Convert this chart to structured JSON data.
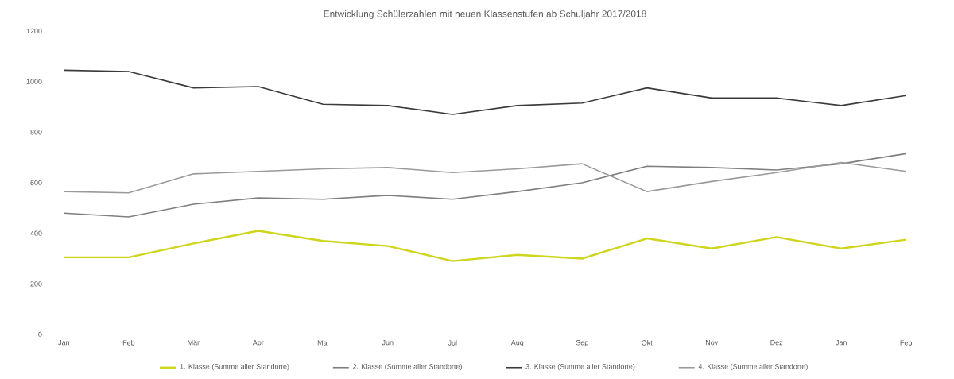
{
  "chart_data": {
    "type": "line",
    "title": "Entwicklung Schülerzahlen mit neuen Klassenstufen ab Schuljahr 2017/2018",
    "categories": [
      "Jan",
      "Feb",
      "Mär",
      "Apr",
      "Mai",
      "Jun",
      "Jul",
      "Aug",
      "Sep",
      "Okt",
      "Nov",
      "Dez",
      "Jan",
      "Feb"
    ],
    "series": [
      {
        "name": "1. Klasse (Summe aller Standorte)",
        "color": "#cfd41c",
        "values": [
          305,
          305,
          360,
          410,
          370,
          350,
          290,
          315,
          300,
          380,
          340,
          385,
          340,
          375
        ]
      },
      {
        "name": "2. Klasse (Summe aller Standorte)",
        "color": "#7f7f7f",
        "values": [
          480,
          465,
          515,
          540,
          535,
          550,
          535,
          565,
          600,
          665,
          660,
          650,
          675,
          715
        ]
      },
      {
        "name": "3. Klasse (Summe aller Standorte)",
        "color": "#3a3a3a",
        "values": [
          1045,
          1040,
          975,
          980,
          910,
          905,
          870,
          905,
          915,
          975,
          935,
          935,
          905,
          945
        ]
      },
      {
        "name": "4. Klasse (Summe aller Standorte)",
        "color": "#9a9a9a",
        "values": [
          565,
          560,
          635,
          645,
          655,
          660,
          640,
          655,
          675,
          565,
          605,
          640,
          680,
          645
        ]
      }
    ],
    "ylim": [
      0,
      1200
    ],
    "yticks": [
      0,
      200,
      400,
      600,
      800,
      1000,
      1200
    ],
    "legend": "bottom",
    "grid": false
  }
}
